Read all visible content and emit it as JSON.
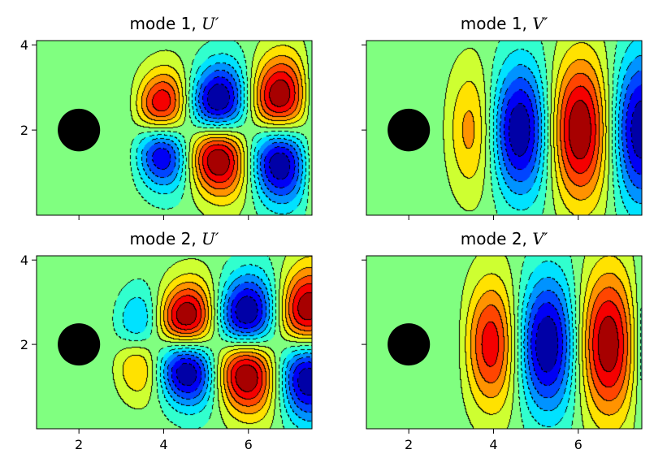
{
  "chart_data": [
    {
      "type": "heatmap",
      "title": "mode 1, ",
      "title_symbol": "U′",
      "field": "U",
      "mode": 1,
      "xlim": [
        1,
        7.5
      ],
      "ylim": [
        0,
        4.1
      ],
      "xticks": [
        2,
        4,
        6
      ],
      "yticks": [
        2,
        4
      ],
      "xtick_labels": [],
      "ytick_labels": [
        "2",
        "4"
      ],
      "cylinder": {
        "x": 2,
        "y": 2,
        "radius": 0.5
      },
      "colormap": "jet",
      "contour_levels": 13,
      "negative_contours": "dashed"
    },
    {
      "type": "heatmap",
      "title": "mode 1, ",
      "title_symbol": "V′",
      "field": "V",
      "mode": 1,
      "xlim": [
        1,
        7.5
      ],
      "ylim": [
        0,
        4.1
      ],
      "xticks": [
        2,
        4,
        6
      ],
      "yticks": [
        2,
        4
      ],
      "xtick_labels": [],
      "ytick_labels": [],
      "cylinder": {
        "x": 2,
        "y": 2,
        "radius": 0.5
      },
      "colormap": "jet",
      "contour_levels": 13,
      "negative_contours": "dashed"
    },
    {
      "type": "heatmap",
      "title": "mode 2, ",
      "title_symbol": "U′",
      "field": "U",
      "mode": 2,
      "xlim": [
        1,
        7.5
      ],
      "ylim": [
        0,
        4.1
      ],
      "xticks": [
        2,
        4,
        6
      ],
      "yticks": [
        2,
        4
      ],
      "xtick_labels": [
        "2",
        "4",
        "6"
      ],
      "ytick_labels": [
        "2",
        "4"
      ],
      "cylinder": {
        "x": 2,
        "y": 2,
        "radius": 0.5
      },
      "colormap": "jet",
      "contour_levels": 13,
      "negative_contours": "dashed"
    },
    {
      "type": "heatmap",
      "title": "mode 2, ",
      "title_symbol": "V′",
      "field": "V",
      "mode": 2,
      "xlim": [
        1,
        7.5
      ],
      "ylim": [
        0,
        4.1
      ],
      "xticks": [
        2,
        4,
        6
      ],
      "yticks": [
        2,
        4
      ],
      "xtick_labels": [
        "2",
        "4",
        "6"
      ],
      "ytick_labels": [],
      "cylinder": {
        "x": 2,
        "y": 2,
        "radius": 0.5
      },
      "colormap": "jet",
      "contour_levels": 13,
      "negative_contours": "dashed"
    }
  ]
}
